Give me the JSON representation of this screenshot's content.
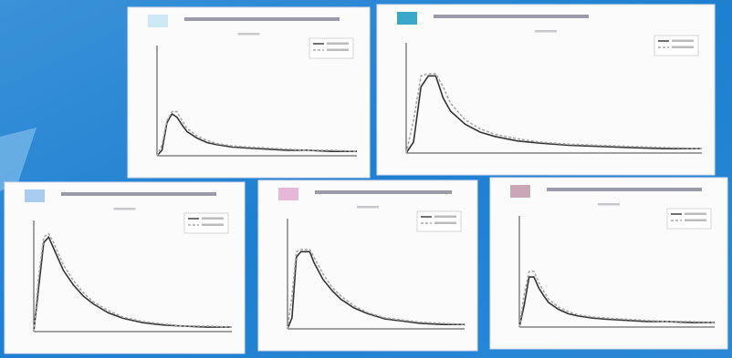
{
  "chart_data": [
    {
      "type": "line",
      "xlim": [
        0,
        40
      ],
      "ylim": [
        0,
        1
      ],
      "x": [
        0,
        1,
        2,
        3,
        4,
        5,
        6,
        8,
        10,
        12,
        15,
        18,
        22,
        26,
        30,
        35,
        40
      ],
      "series": [
        {
          "color": "#333333",
          "values": [
            0,
            0.05,
            0.3,
            0.38,
            0.35,
            0.28,
            0.22,
            0.16,
            0.12,
            0.1,
            0.08,
            0.07,
            0.06,
            0.05,
            0.05,
            0.04,
            0.04
          ]
        },
        {
          "color": "#a8a8a8",
          "values": [
            0,
            0.1,
            0.32,
            0.4,
            0.4,
            0.32,
            0.25,
            0.18,
            0.14,
            0.11,
            0.09,
            0.08,
            0.07,
            0.06,
            0.05,
            0.05,
            0.04
          ]
        }
      ]
    },
    {
      "type": "line",
      "xlim": [
        0,
        40
      ],
      "ylim": [
        0,
        1
      ],
      "x": [
        0,
        1,
        2,
        3,
        4,
        5,
        6,
        8,
        10,
        12,
        15,
        18,
        22,
        26,
        30,
        35,
        40
      ],
      "series": [
        {
          "color": "#333333",
          "values": [
            0,
            0.1,
            0.6,
            0.7,
            0.7,
            0.5,
            0.38,
            0.26,
            0.19,
            0.15,
            0.11,
            0.09,
            0.07,
            0.06,
            0.05,
            0.04,
            0.04
          ]
        },
        {
          "color": "#a8a8a8",
          "values": [
            0,
            0.3,
            0.7,
            0.72,
            0.72,
            0.6,
            0.45,
            0.3,
            0.22,
            0.17,
            0.13,
            0.1,
            0.08,
            0.07,
            0.06,
            0.05,
            0.04
          ]
        }
      ]
    },
    {
      "type": "line",
      "xlim": [
        0,
        40
      ],
      "ylim": [
        0,
        1
      ],
      "x": [
        0,
        1,
        2,
        3,
        4,
        5,
        6,
        8,
        10,
        12,
        15,
        18,
        22,
        26,
        30,
        35,
        40
      ],
      "series": [
        {
          "color": "#333333",
          "values": [
            0,
            0.4,
            0.8,
            0.85,
            0.75,
            0.65,
            0.55,
            0.42,
            0.32,
            0.25,
            0.17,
            0.12,
            0.08,
            0.06,
            0.05,
            0.04,
            0.04
          ]
        },
        {
          "color": "#a8a8a8",
          "values": [
            0,
            0.5,
            0.85,
            0.88,
            0.8,
            0.7,
            0.6,
            0.46,
            0.35,
            0.27,
            0.19,
            0.13,
            0.09,
            0.07,
            0.05,
            0.05,
            0.04
          ]
        }
      ]
    },
    {
      "type": "line",
      "xlim": [
        0,
        40
      ],
      "ylim": [
        0,
        1
      ],
      "x": [
        0,
        1,
        2,
        3,
        4,
        5,
        6,
        8,
        10,
        12,
        15,
        18,
        22,
        26,
        30,
        35,
        40
      ],
      "series": [
        {
          "color": "#333333",
          "values": [
            0,
            0.1,
            0.65,
            0.7,
            0.7,
            0.7,
            0.6,
            0.45,
            0.35,
            0.27,
            0.19,
            0.14,
            0.09,
            0.07,
            0.05,
            0.04,
            0.04
          ]
        },
        {
          "color": "#a8a8a8",
          "values": [
            0,
            0.3,
            0.7,
            0.72,
            0.72,
            0.72,
            0.65,
            0.5,
            0.38,
            0.3,
            0.21,
            0.15,
            0.1,
            0.08,
            0.06,
            0.05,
            0.04
          ]
        }
      ]
    },
    {
      "type": "line",
      "xlim": [
        0,
        40
      ],
      "ylim": [
        0,
        1
      ],
      "x": [
        0,
        1,
        2,
        3,
        4,
        5,
        6,
        8,
        10,
        12,
        15,
        18,
        22,
        26,
        30,
        35,
        40
      ],
      "series": [
        {
          "color": "#333333",
          "values": [
            0,
            0.2,
            0.45,
            0.45,
            0.35,
            0.28,
            0.22,
            0.16,
            0.12,
            0.1,
            0.08,
            0.07,
            0.06,
            0.05,
            0.05,
            0.04,
            0.04
          ]
        },
        {
          "color": "#a8a8a8",
          "values": [
            0,
            0.3,
            0.5,
            0.5,
            0.4,
            0.32,
            0.25,
            0.18,
            0.14,
            0.11,
            0.09,
            0.08,
            0.07,
            0.06,
            0.05,
            0.05,
            0.04
          ]
        }
      ]
    }
  ]
}
